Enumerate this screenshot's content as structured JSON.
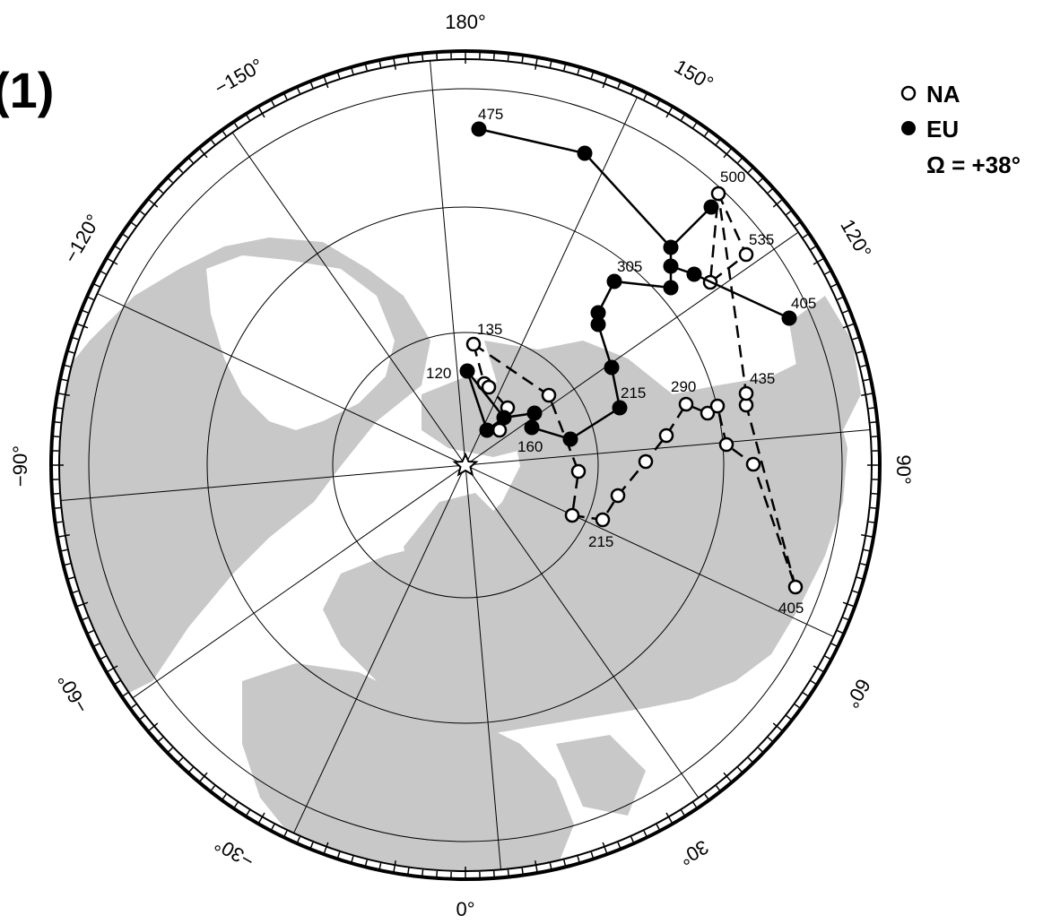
{
  "panel_label": "(1)",
  "legend": {
    "items": [
      {
        "symbol": "open-circle",
        "label": "NA"
      },
      {
        "symbol": "filled-circle",
        "label": "EU"
      }
    ],
    "omega": "Ω = +38°"
  },
  "longitude_labels": [
    "180°",
    "150°",
    "120°",
    "90°",
    "60°",
    "30°",
    "0°",
    "−30°",
    "−60°",
    "−90°",
    "−120°",
    "−150°"
  ],
  "colors": {
    "land": "#c8c8c8",
    "ocean": "#ffffff",
    "lines": "#000000"
  },
  "map_data": {
    "projection": "north polar stereographic (Greenwich down)",
    "graticule_latitude_circles": [
      80,
      70,
      60,
      50,
      40
    ],
    "meridian_spacing_deg": 30,
    "center_marker": "star-icon",
    "tracks": [
      {
        "name": "NA",
        "style": "dashed",
        "marker": "open",
        "labels": [
          {
            "text": "135"
          },
          {
            "text": "215"
          },
          {
            "text": "290"
          },
          {
            "text": "435"
          },
          {
            "text": "405"
          },
          {
            "text": "535"
          },
          {
            "text": "500"
          }
        ]
      },
      {
        "name": "EU",
        "style": "solid",
        "marker": "filled",
        "labels": [
          {
            "text": "120"
          },
          {
            "text": "160"
          },
          {
            "text": "215"
          },
          {
            "text": "305"
          },
          {
            "text": "405"
          },
          {
            "text": "475"
          }
        ]
      }
    ]
  }
}
